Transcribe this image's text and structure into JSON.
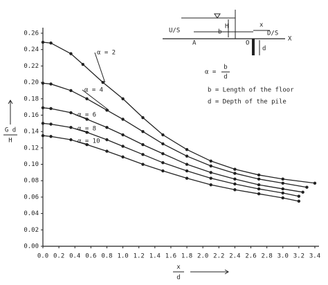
{
  "chart_data": {
    "type": "line",
    "y_label": {
      "numerator": "G d",
      "denominator": "H"
    },
    "x_label": {
      "numerator": "x",
      "denominator": "d"
    },
    "xlim": [
      0,
      3.4
    ],
    "ylim": [
      0,
      0.26
    ],
    "xticks": [
      {
        "value": 0,
        "label": "0.0"
      },
      0.2,
      0.4,
      0.6,
      0.8,
      {
        "value": 1,
        "label": "1.0"
      },
      1.2,
      1.4,
      1.6,
      1.8,
      {
        "value": 2,
        "label": "2.0"
      },
      2.2,
      2.4,
      2.6,
      2.8,
      {
        "value": 3,
        "label": "3.0"
      },
      3.2,
      3.4
    ],
    "yticks": [
      {
        "value": 0,
        "label": "0.00"
      },
      0.02,
      0.04,
      0.06,
      0.08,
      {
        "value": 0.1,
        "label": "0.10"
      },
      0.12,
      0.14,
      0.16,
      0.18,
      {
        "value": 0.2,
        "label": "0.20"
      },
      0.22,
      0.24,
      0.26
    ],
    "color": "#222222",
    "series": [
      {
        "name": "α = 2",
        "x": [
          0,
          0.1,
          0.35,
          0.5,
          0.75,
          1.0,
          1.25,
          1.5,
          1.8,
          2.1,
          2.4,
          2.7,
          3.0,
          3.4
        ],
        "values": [
          0.249,
          0.248,
          0.235,
          0.222,
          0.2,
          0.18,
          0.157,
          0.136,
          0.118,
          0.104,
          0.094,
          0.087,
          0.082,
          0.077
        ]
      },
      {
        "name": "α = 4",
        "x": [
          0,
          0.1,
          0.35,
          0.55,
          0.8,
          1.0,
          1.25,
          1.5,
          1.8,
          2.1,
          2.4,
          2.7,
          3.0,
          3.3
        ],
        "values": [
          0.199,
          0.198,
          0.19,
          0.18,
          0.166,
          0.155,
          0.14,
          0.125,
          0.11,
          0.098,
          0.089,
          0.082,
          0.077,
          0.072
        ]
      },
      {
        "name": "α = 6",
        "x": [
          0,
          0.1,
          0.35,
          0.55,
          0.8,
          1.0,
          1.25,
          1.5,
          1.8,
          2.1,
          2.4,
          2.7,
          3.0,
          3.25
        ],
        "values": [
          0.169,
          0.168,
          0.163,
          0.155,
          0.145,
          0.136,
          0.124,
          0.113,
          0.1,
          0.09,
          0.082,
          0.075,
          0.07,
          0.066
        ]
      },
      {
        "name": "α = 8",
        "x": [
          0,
          0.1,
          0.35,
          0.55,
          0.8,
          1.0,
          1.25,
          1.5,
          1.8,
          2.1,
          2.4,
          2.7,
          3.0,
          3.2
        ],
        "values": [
          0.15,
          0.149,
          0.145,
          0.139,
          0.13,
          0.122,
          0.112,
          0.102,
          0.092,
          0.083,
          0.076,
          0.07,
          0.065,
          0.061
        ]
      },
      {
        "name": "α = 10",
        "x": [
          0,
          0.1,
          0.35,
          0.55,
          0.8,
          1.0,
          1.25,
          1.5,
          1.8,
          2.1,
          2.4,
          2.7,
          3.0,
          3.2
        ],
        "values": [
          0.135,
          0.134,
          0.13,
          0.124,
          0.116,
          0.109,
          0.1,
          0.092,
          0.083,
          0.075,
          0.069,
          0.064,
          0.059,
          0.055
        ]
      }
    ],
    "legend_notes": {
      "alpha": "α =",
      "alpha_num": "b",
      "alpha_den": "d",
      "b": "b = Length of the floor",
      "d": "d = Depth of the pile"
    },
    "inset": {
      "us": "U/S",
      "ds": "D/S",
      "h": "H",
      "b": "b",
      "x": "x",
      "a": "A",
      "o": "O",
      "d": "d",
      "xaxis": "X"
    }
  }
}
